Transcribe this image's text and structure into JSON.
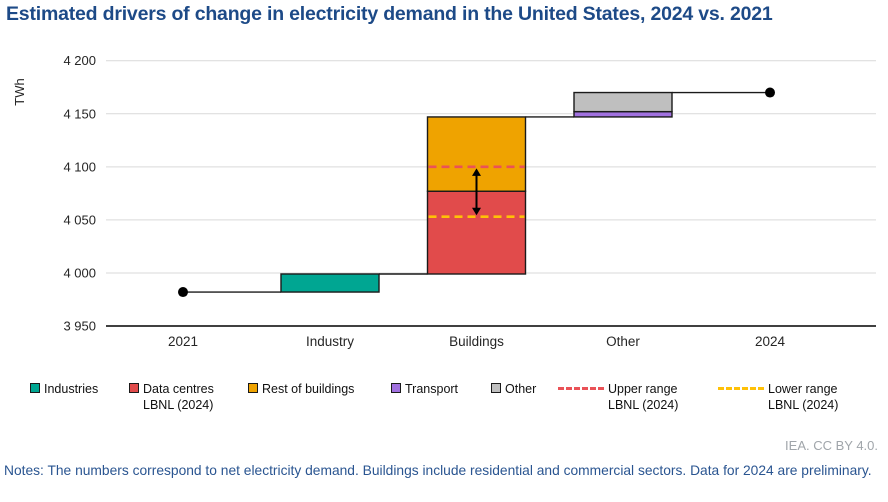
{
  "header": {
    "title": "Estimated drivers of change in electricity demand in the United States, 2024 vs. 2021"
  },
  "chart_data": {
    "type": "waterfall",
    "title": "Estimated drivers of change in electricity demand in the United States, 2024 vs. 2021",
    "ylabel": "TWh",
    "ylim": [
      3950,
      4200
    ],
    "grid": true,
    "legend_position": "bottom",
    "yticks": [
      {
        "value": 3950,
        "label": "3 950"
      },
      {
        "value": 4000,
        "label": "4 000"
      },
      {
        "value": 4050,
        "label": "4 050"
      },
      {
        "value": 4100,
        "label": "4 100"
      },
      {
        "value": 4150,
        "label": "4 150"
      },
      {
        "value": 4200,
        "label": "4 200"
      }
    ],
    "categories": [
      "2021",
      "Industry",
      "Buildings",
      "Other",
      "2024"
    ],
    "totals": {
      "2021": 3982,
      "2024": 4170
    },
    "segments": [
      {
        "category": "Industry",
        "name": "Industries",
        "from": 3982,
        "to": 3999,
        "color": "#00a692"
      },
      {
        "category": "Buildings",
        "name": "Data centres LBNL (2024)",
        "from": 3999,
        "to": 4077,
        "color": "#e14b4b"
      },
      {
        "category": "Buildings",
        "name": "Rest of buildings",
        "from": 4077,
        "to": 4147,
        "color": "#efa300"
      },
      {
        "category": "Other",
        "name": "Transport",
        "from": 4147,
        "to": 4152,
        "color": "#a171e0"
      },
      {
        "category": "Other",
        "name": "Other",
        "from": 4152,
        "to": 4170,
        "color": "#bfbfbf"
      }
    ],
    "range_lines": [
      {
        "name": "Upper range LBNL (2024)",
        "category": "Buildings",
        "value": 4100,
        "color": "#ea5257"
      },
      {
        "name": "Lower range LBNL (2024)",
        "category": "Buildings",
        "value": 4053,
        "color": "#ffc107"
      }
    ],
    "arrow_between": {
      "category": "Buildings",
      "from": 4053,
      "to": 4100
    },
    "connectors": [
      {
        "from": "2021",
        "to": "Industry",
        "value": 3982
      },
      {
        "from": "Industry",
        "to": "Buildings",
        "value": 3999
      },
      {
        "from": "Buildings",
        "to": "Other",
        "value": 4147
      },
      {
        "from": "Other",
        "to": "2024",
        "value": 4170
      }
    ]
  },
  "legend": {
    "items": [
      {
        "label": "Industries",
        "label2": "",
        "swatch": "square",
        "color": "#00a692"
      },
      {
        "label": "Data centres",
        "label2": "LBNL (2024)",
        "swatch": "square",
        "color": "#e14b4b"
      },
      {
        "label": "Rest of buildings",
        "label2": "",
        "swatch": "square",
        "color": "#efa300"
      },
      {
        "label": "Transport",
        "label2": "",
        "swatch": "square",
        "color": "#a171e0"
      },
      {
        "label": "Other",
        "label2": "",
        "swatch": "square",
        "color": "#bfbfbf"
      },
      {
        "label": "Upper range",
        "label2": "LBNL (2024)",
        "swatch": "dash",
        "color": "#ea5257"
      },
      {
        "label": "Lower range",
        "label2": "LBNL (2024)",
        "swatch": "dash",
        "color": "#ffc107"
      }
    ]
  },
  "footer": {
    "attribution": "IEA. CC BY 4.0.",
    "notes": "Notes: The numbers correspond to net electricity demand. Buildings include residential and commercial sectors. Data for 2024 are preliminary."
  },
  "colors": {
    "title": "#1d4a87",
    "notes": "#2a5591",
    "grid": "#d9d9d9",
    "axis": "#000000",
    "connector": "#1a1a1a",
    "bar_border": "#1a1a1a",
    "attribution": "#a0a5aa"
  }
}
